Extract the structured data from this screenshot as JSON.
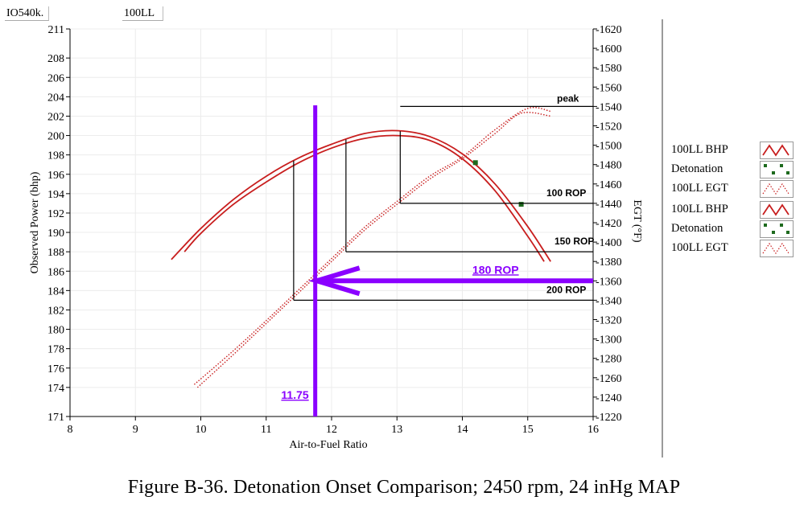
{
  "header": {
    "engine": "IO540k.",
    "fuel": "100LL"
  },
  "caption": "Figure B-36.  Detonation Onset Comparison; 2450 rpm, 24 inHg MAP",
  "colors": {
    "bhp": "#c81e1e",
    "egt": "#c81e1e",
    "detonation": "#1e6a1e",
    "marker": "#8a00ff",
    "guide": "#000000"
  },
  "legend": [
    {
      "label": "100LL BHP",
      "icon": "solid-zigzag-icon"
    },
    {
      "label": "Detonation",
      "icon": "dots-icon"
    },
    {
      "label": "100LL EGT",
      "icon": "dotted-zigzag-icon"
    },
    {
      "label": "100LL BHP",
      "icon": "solid-zigzag-icon"
    },
    {
      "label": "Detonation",
      "icon": "dots-icon"
    },
    {
      "label": "100LL EGT",
      "icon": "dotted-zigzag-icon"
    }
  ],
  "chart_data": {
    "type": "line",
    "xlabel": "Air-to-Fuel Ratio",
    "ylabel": "Observed Power (bhp)",
    "y2label": "EGT (°F)",
    "xlim": [
      8,
      16
    ],
    "ylim": [
      171,
      211
    ],
    "y2lim": [
      1220,
      1620
    ],
    "xticks": [
      8,
      9,
      10,
      11,
      12,
      13,
      14,
      15,
      16
    ],
    "yticks": [
      171,
      174,
      176,
      178,
      180,
      182,
      184,
      186,
      188,
      190,
      192,
      194,
      196,
      198,
      200,
      202,
      204,
      206,
      208,
      211
    ],
    "y2ticks": [
      1220,
      1240,
      1260,
      1280,
      1300,
      1320,
      1340,
      1360,
      1380,
      1400,
      1420,
      1440,
      1460,
      1480,
      1500,
      1520,
      1540,
      1560,
      1580,
      1600,
      1620
    ],
    "series": [
      {
        "name": "100LL BHP",
        "axis": "left",
        "style": "solid",
        "x": [
          9.55,
          10.0,
          10.5,
          11.0,
          11.5,
          12.0,
          12.5,
          13.0,
          13.5,
          14.0,
          14.5,
          15.0,
          15.35
        ],
        "y": [
          187.2,
          190.4,
          193.4,
          195.8,
          197.7,
          199.1,
          200.2,
          200.5,
          199.9,
          198.1,
          195.0,
          190.6,
          187.0
        ]
      },
      {
        "name": "100LL BHP",
        "axis": "left",
        "style": "solid",
        "x": [
          9.75,
          10.0,
          10.5,
          11.0,
          11.5,
          12.0,
          12.5,
          13.0,
          13.5,
          14.0,
          14.5,
          15.0,
          15.25
        ],
        "y": [
          188.0,
          189.9,
          192.9,
          195.2,
          197.2,
          198.7,
          199.7,
          200.0,
          199.5,
          197.6,
          194.3,
          189.6,
          187.0
        ]
      },
      {
        "name": "100LL EGT",
        "axis": "right",
        "style": "dotted",
        "x": [
          9.9,
          10.5,
          11.0,
          11.5,
          12.0,
          12.5,
          13.0,
          13.5,
          14.0,
          14.5,
          15.0,
          15.35
        ],
        "y": [
          1253,
          1288,
          1319,
          1351,
          1383,
          1415,
          1442,
          1468,
          1488,
          1516,
          1538,
          1535
        ]
      },
      {
        "name": "100LL EGT",
        "axis": "right",
        "style": "dotted",
        "x": [
          9.95,
          10.5,
          11.0,
          11.5,
          12.0,
          12.5,
          13.0,
          13.5,
          14.0,
          14.5,
          14.9,
          15.35
        ],
        "y": [
          1250,
          1284,
          1316,
          1348,
          1380,
          1412,
          1439,
          1465,
          1486,
          1512,
          1533,
          1530
        ]
      }
    ],
    "detonation_points": [
      {
        "x": 14.2,
        "y": 197.2,
        "axis": "left"
      },
      {
        "x": 14.9,
        "y": 1439,
        "axis": "right"
      }
    ],
    "reference_lines": [
      {
        "label": "peak",
        "x": 13.05,
        "y": 1540
      },
      {
        "label": "100 ROP",
        "x": 13.05,
        "y": 1440
      },
      {
        "label": "150 ROP",
        "x": 12.22,
        "y": 1390
      },
      {
        "label": "200 ROP",
        "x": 11.42,
        "y": 1340
      }
    ],
    "annotations": [
      {
        "label": "180 ROP",
        "y": 1360,
        "arrow_from_x": 16.0,
        "arrow_to_x": 11.75
      },
      {
        "label": "11.75",
        "x": 11.75
      }
    ],
    "grid": true,
    "legend_position": "right"
  }
}
